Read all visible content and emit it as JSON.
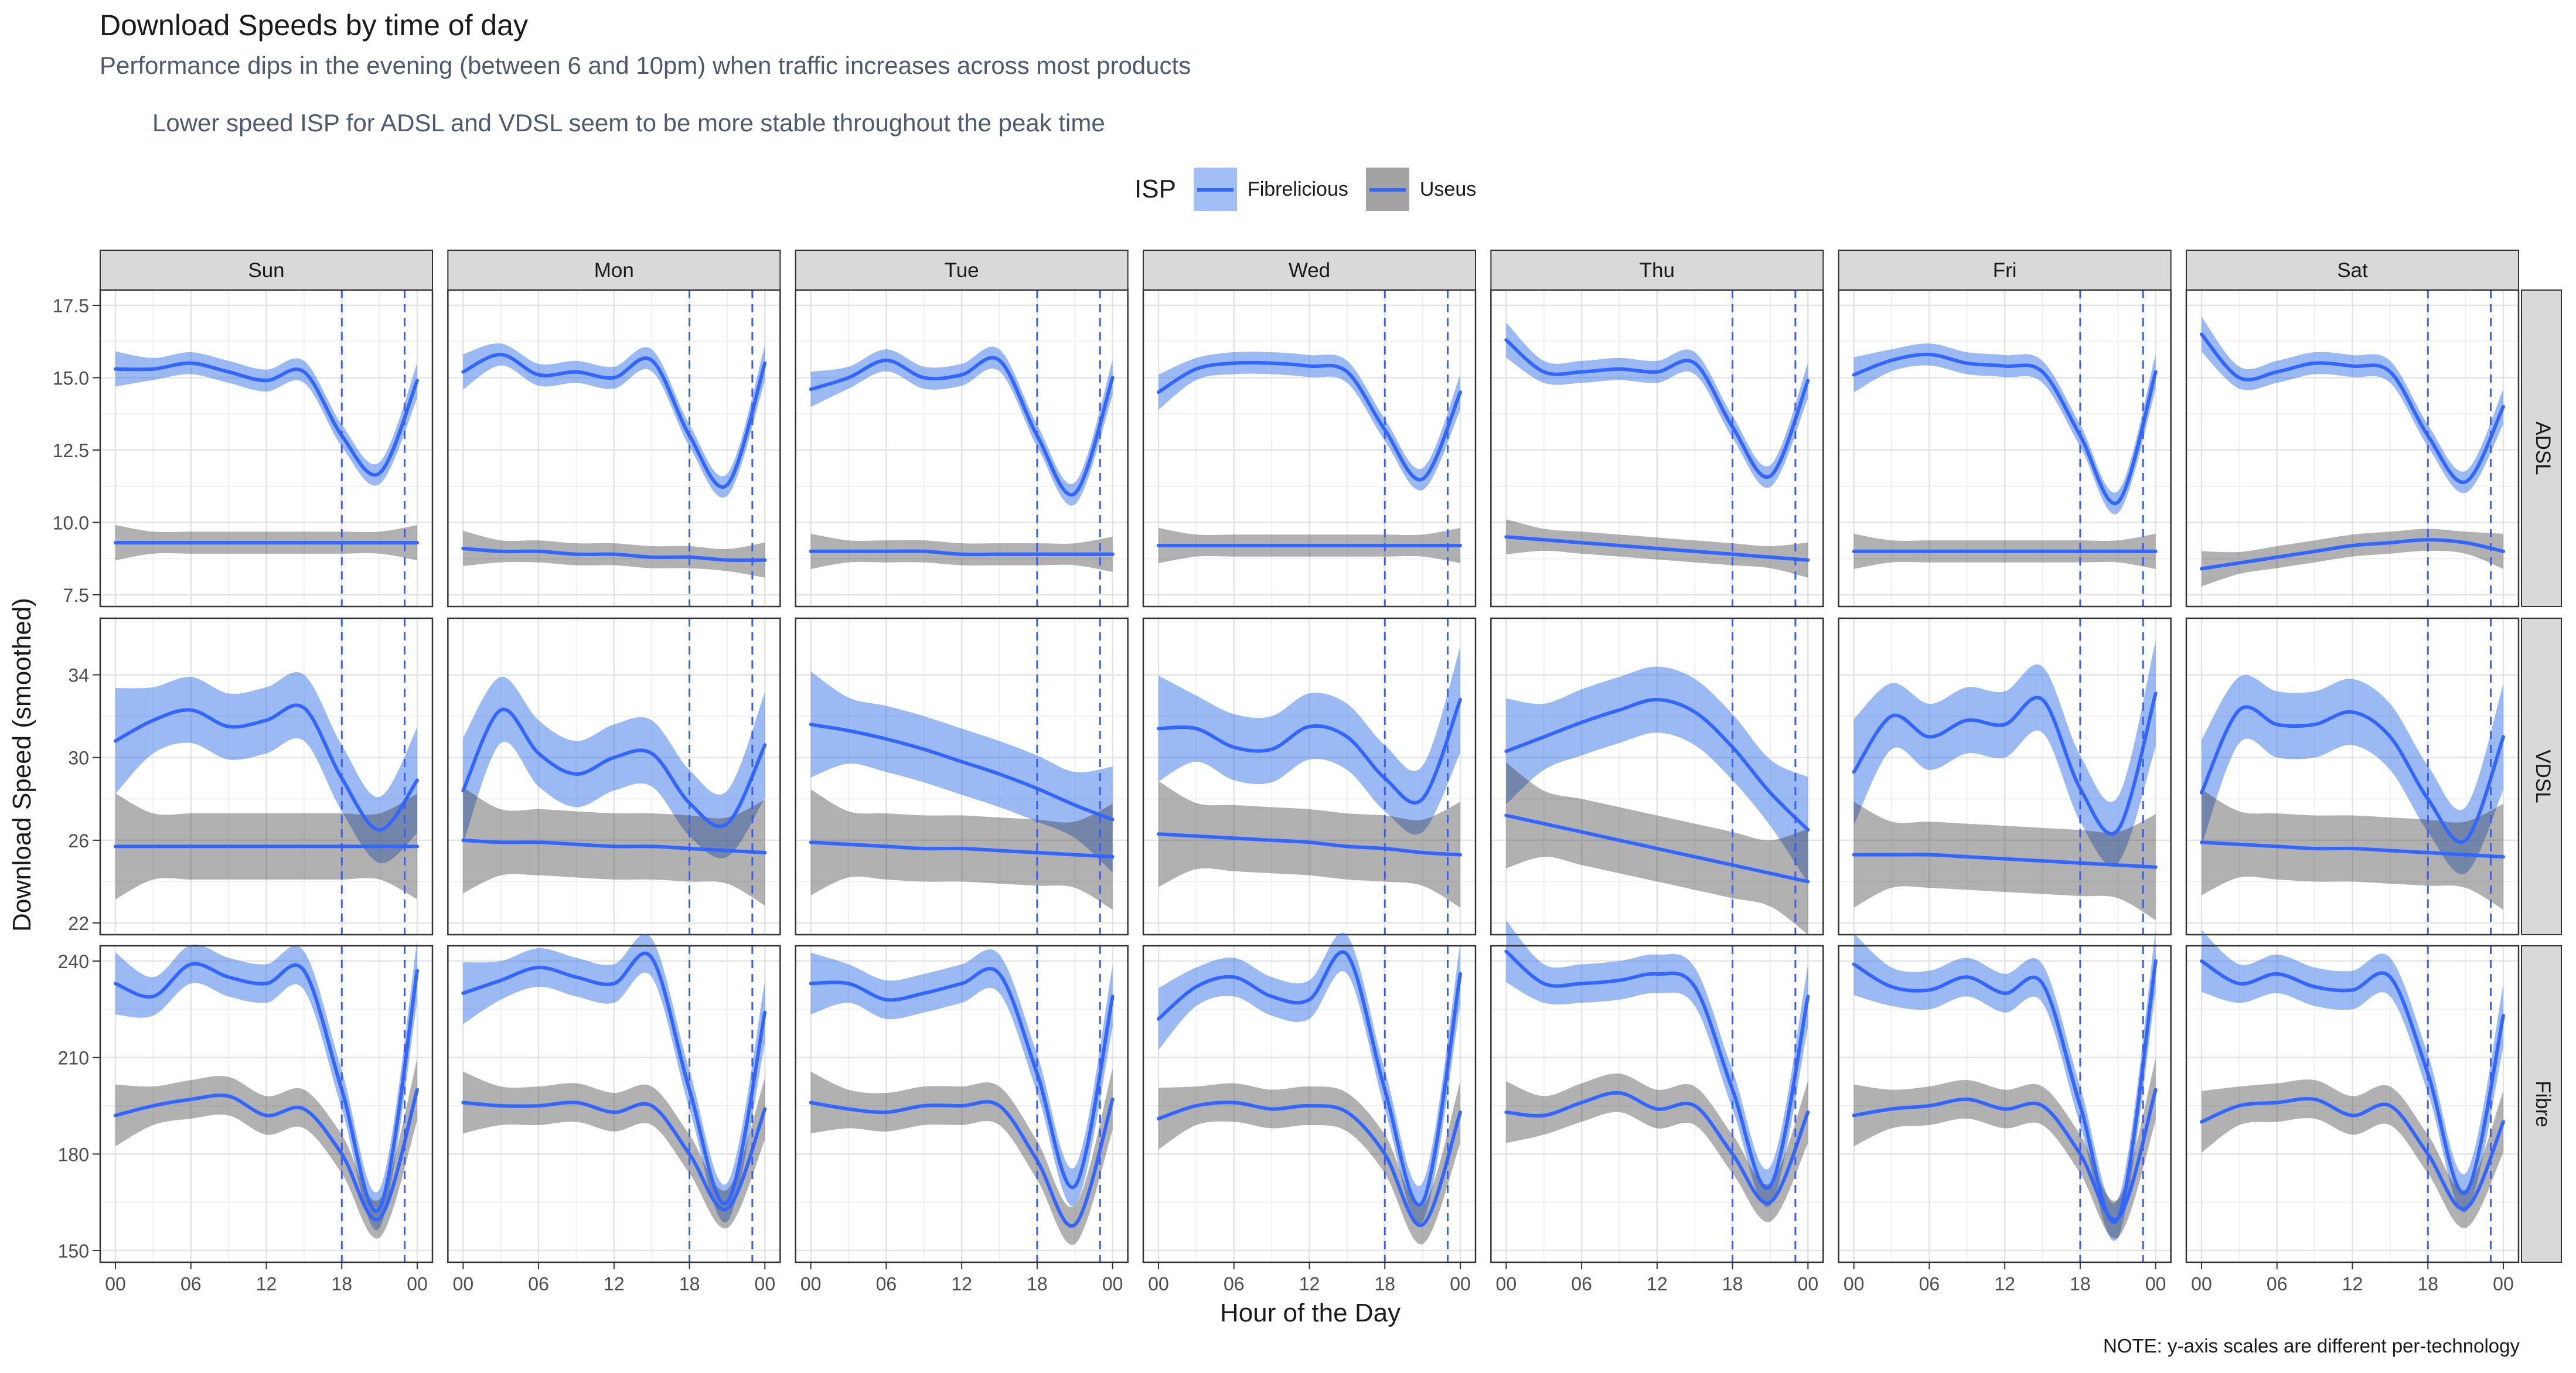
{
  "title": "Download Speeds by time of day",
  "subtitle": "Performance dips in the evening (between 6 and 10pm) when traffic increases across most products",
  "subtitle2": "Lower speed ISP for ADSL and VDSL seem to be more stable throughout the peak time",
  "note": "NOTE: y-axis scales are different per-technology",
  "legend": {
    "title": "ISP",
    "items": [
      {
        "label": "Fibrelicious",
        "band_color": "#2f6ee8"
      },
      {
        "label": "Useus",
        "band_color": "#333333"
      }
    ],
    "line_color": "#3366ff"
  },
  "chart_data": {
    "type": "line",
    "facet_cols": [
      "Sun",
      "Mon",
      "Tue",
      "Wed",
      "Thu",
      "Fri",
      "Sat"
    ],
    "facet_rows": [
      "ADSL",
      "VDSL",
      "Fibre"
    ],
    "xlabel": "Hour of the Day",
    "ylabel": "Download Speed (smoothed)",
    "x_ticks": [
      "00",
      "06",
      "12",
      "18",
      "00"
    ],
    "x_range": [
      0,
      24
    ],
    "vlines": [
      18,
      23
    ],
    "grid": true,
    "legend_position": "top",
    "y_axes": {
      "ADSL": {
        "range": [
          7.5,
          17.5
        ],
        "ticks": [
          "7.5",
          "10.0",
          "12.5",
          "15.0",
          "17.5"
        ]
      },
      "VDSL": {
        "range": [
          22,
          36
        ],
        "ticks": [
          "22",
          "26",
          "30",
          "34"
        ]
      },
      "Fibre": {
        "range": [
          150,
          240
        ],
        "ticks": [
          "150",
          "180",
          "210",
          "240"
        ]
      }
    },
    "series": [
      {
        "name": "Fibrelicious",
        "band_color": "#2f6ee8",
        "line_color": "#3366ff",
        "x": [
          0,
          3,
          6,
          9,
          12,
          15,
          18,
          21,
          24
        ],
        "values": {
          "ADSL": {
            "Sun": [
              15.3,
              15.3,
              15.5,
              15.2,
              14.9,
              15.2,
              13.0,
              11.7,
              14.9
            ],
            "Mon": [
              15.2,
              15.8,
              15.1,
              15.2,
              15.0,
              15.6,
              13.0,
              11.3,
              15.5
            ],
            "Tue": [
              14.6,
              15.0,
              15.6,
              15.0,
              15.1,
              15.6,
              13.0,
              11.0,
              15.0
            ],
            "Wed": [
              14.5,
              15.3,
              15.5,
              15.5,
              15.4,
              15.2,
              13.2,
              11.5,
              14.5
            ],
            "Thu": [
              16.3,
              15.2,
              15.2,
              15.3,
              15.2,
              15.5,
              13.3,
              11.6,
              14.9
            ],
            "Fri": [
              15.1,
              15.6,
              15.8,
              15.5,
              15.4,
              15.2,
              13.0,
              10.7,
              15.2
            ],
            "Sat": [
              16.5,
              15.0,
              15.2,
              15.5,
              15.4,
              15.2,
              13.0,
              11.4,
              14.0
            ]
          },
          "VDSL": {
            "Sun": [
              30.8,
              31.8,
              32.3,
              31.5,
              31.8,
              32.4,
              29.0,
              26.5,
              28.9
            ],
            "Mon": [
              28.4,
              32.3,
              30.2,
              29.2,
              30.0,
              30.2,
              27.8,
              26.8,
              30.6
            ],
            "Tue": [
              31.6,
              31.3,
              30.9,
              30.4,
              29.8,
              29.2,
              28.5,
              27.7,
              27.0
            ],
            "Wed": [
              31.4,
              31.4,
              30.5,
              30.4,
              31.5,
              31.0,
              29.0,
              28.0,
              32.8
            ],
            "Thu": [
              30.3,
              31.0,
              31.7,
              32.3,
              32.8,
              32.2,
              30.5,
              28.3,
              26.5
            ],
            "Fri": [
              29.3,
              32.0,
              31.0,
              31.8,
              31.6,
              32.8,
              28.5,
              26.5,
              33.1
            ],
            "Sat": [
              28.3,
              32.3,
              31.6,
              31.6,
              32.2,
              31.0,
              28.0,
              26.0,
              31.0
            ]
          },
          "Fibre": {
            "Sun": [
              233,
              229,
              239,
              235,
              233,
              237,
              200,
              163,
              237
            ],
            "Mon": [
              230,
              234,
              238,
              235,
              233,
              241,
              200,
              165,
              224
            ],
            "Tue": [
              233,
              233,
              228,
              230,
              233,
              236,
              205,
              170,
              229
            ],
            "Wed": [
              222,
              232,
              235,
              229,
              228,
              242,
              200,
              165,
              236
            ],
            "Thu": [
              243,
              233,
              233,
              234,
              236,
              232,
              200,
              170,
              229
            ],
            "Fri": [
              239,
              232,
              231,
              235,
              230,
              233,
              195,
              160,
              240
            ],
            "Sat": [
              240,
              233,
              236,
              232,
              231,
              235,
              205,
              168,
              223
            ]
          }
        }
      },
      {
        "name": "Useus",
        "band_color": "#333333",
        "line_color": "#3366ff",
        "x": [
          0,
          3,
          6,
          9,
          12,
          15,
          18,
          21,
          24
        ],
        "values": {
          "ADSL": {
            "Sun": [
              9.3,
              9.3,
              9.3,
              9.3,
              9.3,
              9.3,
              9.3,
              9.3,
              9.3
            ],
            "Mon": [
              9.1,
              9.0,
              9.0,
              8.9,
              8.9,
              8.8,
              8.8,
              8.7,
              8.7
            ],
            "Tue": [
              9.0,
              9.0,
              9.0,
              9.0,
              8.9,
              8.9,
              8.9,
              8.9,
              8.9
            ],
            "Wed": [
              9.2,
              9.2,
              9.2,
              9.2,
              9.2,
              9.2,
              9.2,
              9.2,
              9.2
            ],
            "Thu": [
              9.5,
              9.4,
              9.3,
              9.2,
              9.1,
              9.0,
              8.9,
              8.8,
              8.7
            ],
            "Fri": [
              9.0,
              9.0,
              9.0,
              9.0,
              9.0,
              9.0,
              9.0,
              9.0,
              9.0
            ],
            "Sat": [
              8.4,
              8.6,
              8.8,
              9.0,
              9.2,
              9.3,
              9.4,
              9.3,
              9.0
            ]
          },
          "VDSL": {
            "Sun": [
              25.7,
              25.7,
              25.7,
              25.7,
              25.7,
              25.7,
              25.7,
              25.7,
              25.7
            ],
            "Mon": [
              26.0,
              25.9,
              25.9,
              25.8,
              25.7,
              25.7,
              25.6,
              25.5,
              25.4
            ],
            "Tue": [
              25.9,
              25.8,
              25.7,
              25.6,
              25.6,
              25.5,
              25.4,
              25.3,
              25.2
            ],
            "Wed": [
              26.3,
              26.2,
              26.1,
              26.0,
              25.9,
              25.7,
              25.6,
              25.4,
              25.3
            ],
            "Thu": [
              27.2,
              26.8,
              26.4,
              26.0,
              25.6,
              25.2,
              24.8,
              24.4,
              24.0
            ],
            "Fri": [
              25.3,
              25.3,
              25.3,
              25.2,
              25.1,
              25.0,
              24.9,
              24.8,
              24.7
            ],
            "Sat": [
              25.9,
              25.8,
              25.7,
              25.6,
              25.6,
              25.5,
              25.4,
              25.3,
              25.2
            ]
          },
          "Fibre": {
            "Sun": [
              192,
              195,
              197,
              198,
              192,
              194,
              180,
              160,
              200
            ],
            "Mon": [
              196,
              195,
              195,
              196,
              193,
              195,
              180,
              163,
              194
            ],
            "Tue": [
              196,
              194,
              193,
              195,
              195,
              195,
              178,
              158,
              197
            ],
            "Wed": [
              191,
              195,
              196,
              194,
              195,
              193,
              180,
              158,
              193
            ],
            "Thu": [
              193,
              192,
              196,
              199,
              194,
              195,
              180,
              165,
              193
            ],
            "Fri": [
              192,
              194,
              195,
              197,
              194,
              195,
              180,
              160,
              200
            ],
            "Sat": [
              190,
              195,
              196,
              197,
              192,
              195,
              180,
              163,
              190
            ]
          }
        }
      }
    ]
  }
}
